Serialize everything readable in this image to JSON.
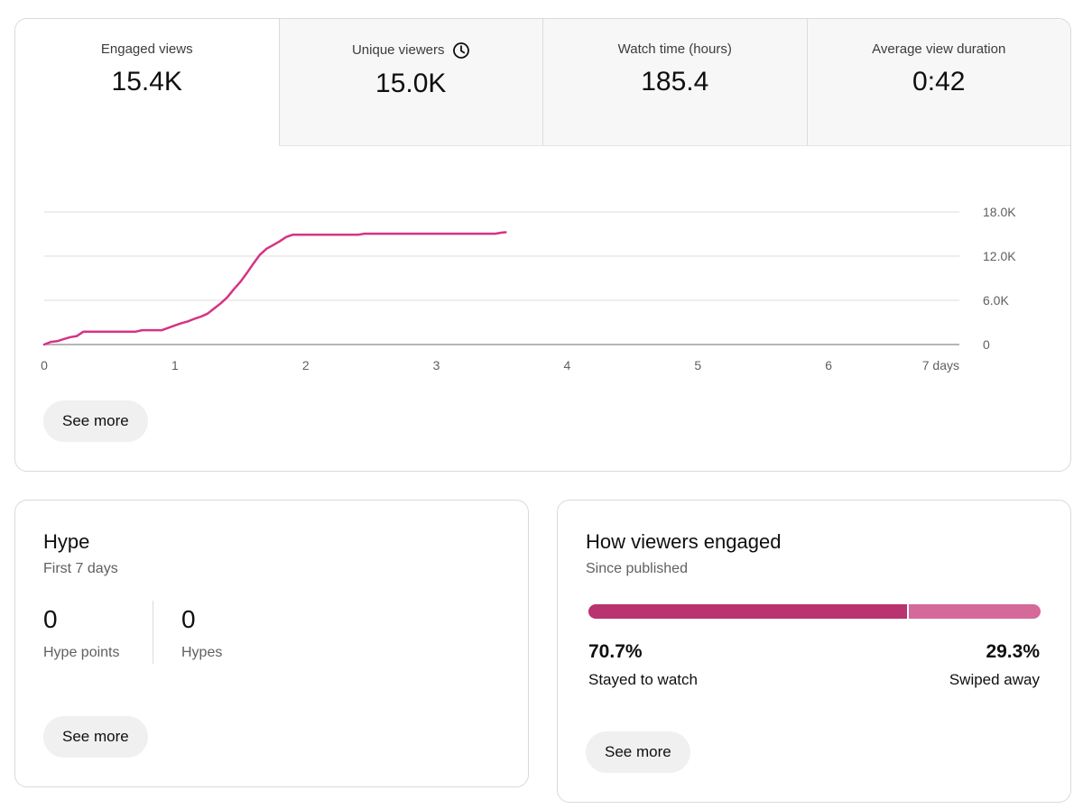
{
  "overview": {
    "tabs": [
      {
        "label": "Engaged views",
        "value": "15.4K",
        "selected": true,
        "icon": ""
      },
      {
        "label": "Unique viewers",
        "value": "15.0K",
        "selected": false,
        "icon": "clock-icon"
      },
      {
        "label": "Watch time (hours)",
        "value": "185.4",
        "selected": false,
        "icon": ""
      },
      {
        "label": "Average view duration",
        "value": "0:42",
        "selected": false,
        "icon": ""
      }
    ],
    "see_more_label": "See more"
  },
  "chart_data": {
    "type": "line",
    "title": "",
    "xlabel": "",
    "ylabel": "",
    "x_ticks": [
      "0",
      "1",
      "2",
      "3",
      "4",
      "5",
      "6",
      "7 days"
    ],
    "y_ticks": [
      "0",
      "6.0K",
      "12.0K",
      "18.0K"
    ],
    "xlim": [
      0,
      7
    ],
    "ylim": [
      0,
      18000
    ],
    "grid": true,
    "line_color": "#d63384",
    "series": [
      {
        "x": [
          0,
          0.05,
          0.1,
          0.15,
          0.2,
          0.25,
          0.3,
          0.4,
          0.5,
          0.6,
          0.7,
          0.75,
          0.8,
          0.9,
          1.0,
          1.05,
          1.1,
          1.15,
          1.2,
          1.25,
          1.3,
          1.35,
          1.4,
          1.45,
          1.5,
          1.55,
          1.6,
          1.65,
          1.7,
          1.75,
          1.8,
          1.85,
          1.9,
          2.0,
          2.2,
          2.4,
          2.45,
          2.6,
          2.8,
          3.0,
          3.2,
          3.4,
          3.45,
          3.5,
          3.53
        ],
        "y": [
          0,
          350,
          450,
          750,
          1000,
          1150,
          1750,
          1750,
          1750,
          1750,
          1750,
          1950,
          1950,
          1950,
          2600,
          2900,
          3150,
          3500,
          3800,
          4200,
          4900,
          5600,
          6400,
          7500,
          8500,
          9700,
          11000,
          12200,
          13000,
          13500,
          14000,
          14600,
          14900,
          14900,
          14900,
          14900,
          15050,
          15050,
          15050,
          15050,
          15050,
          15050,
          15050,
          15200,
          15250
        ]
      }
    ]
  },
  "hype": {
    "title": "Hype",
    "subtitle": "First 7 days",
    "points_value": "0",
    "points_label": "Hype points",
    "hypes_value": "0",
    "hypes_label": "Hypes",
    "see_more_label": "See more"
  },
  "engagement": {
    "title": "How viewers engaged",
    "subtitle": "Since published",
    "stayed_fraction": 0.707,
    "stayed_pct": "70.7%",
    "stayed_label": "Stayed to watch",
    "swiped_pct": "29.3%",
    "swiped_label": "Swiped away",
    "stayed_color": "#b8336f",
    "swiped_color": "#d4699a",
    "see_more_label": "See more"
  }
}
